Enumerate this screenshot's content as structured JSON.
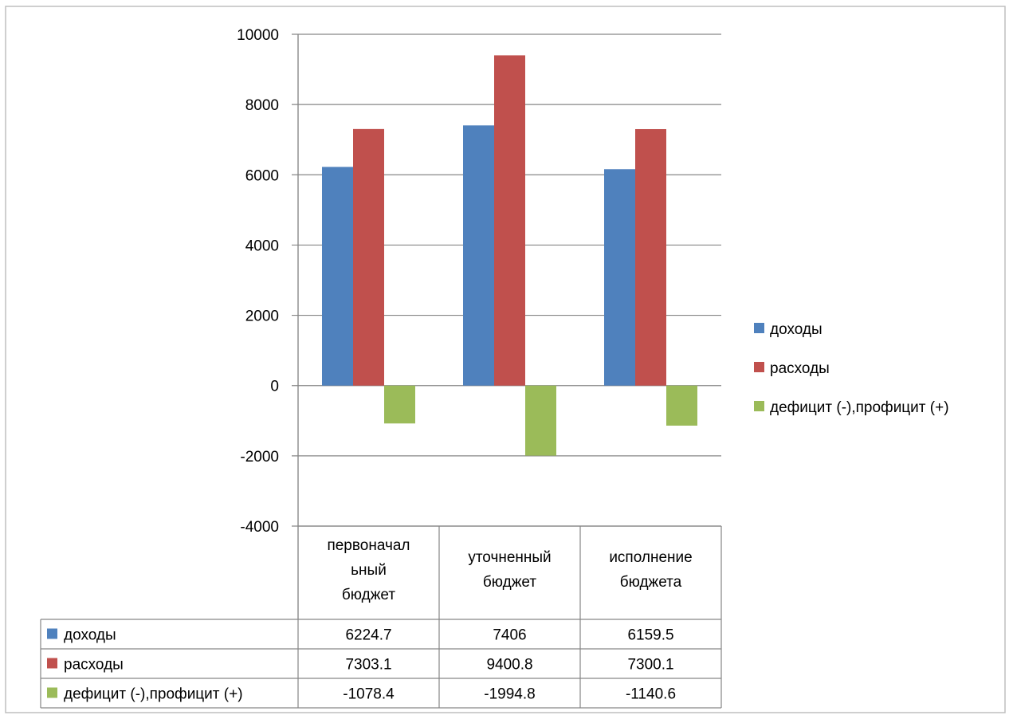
{
  "chart_data": {
    "type": "bar",
    "title": "",
    "xlabel": "",
    "ylabel": "",
    "ylim": [
      -4000,
      10000
    ],
    "yticks": [
      10000,
      8000,
      6000,
      4000,
      2000,
      0,
      -2000,
      -4000
    ],
    "categories": [
      [
        "первоначал",
        "ьный",
        "бюджет"
      ],
      [
        "уточненный",
        "бюджет"
      ],
      [
        "исполнение",
        "бюджета"
      ]
    ],
    "series": [
      {
        "name": "доходы",
        "color": "#4f81bd",
        "values": [
          6224.7,
          7406,
          6159.5
        ],
        "labels": [
          "6224.7",
          "7406",
          "6159.5"
        ]
      },
      {
        "name": "расходы",
        "color": "#c0504d",
        "values": [
          7303.1,
          9400.8,
          7300.1
        ],
        "labels": [
          "7303.1",
          "9400.8",
          "7300.1"
        ]
      },
      {
        "name": "дефицит (-),профицит (+)",
        "color": "#9bbb59",
        "values": [
          -1078.4,
          -1994.8,
          -1140.6
        ],
        "labels": [
          "-1078.4",
          "-1994.8",
          "-1140.6"
        ]
      }
    ],
    "grid": true,
    "legend": "right",
    "data_table": true
  }
}
